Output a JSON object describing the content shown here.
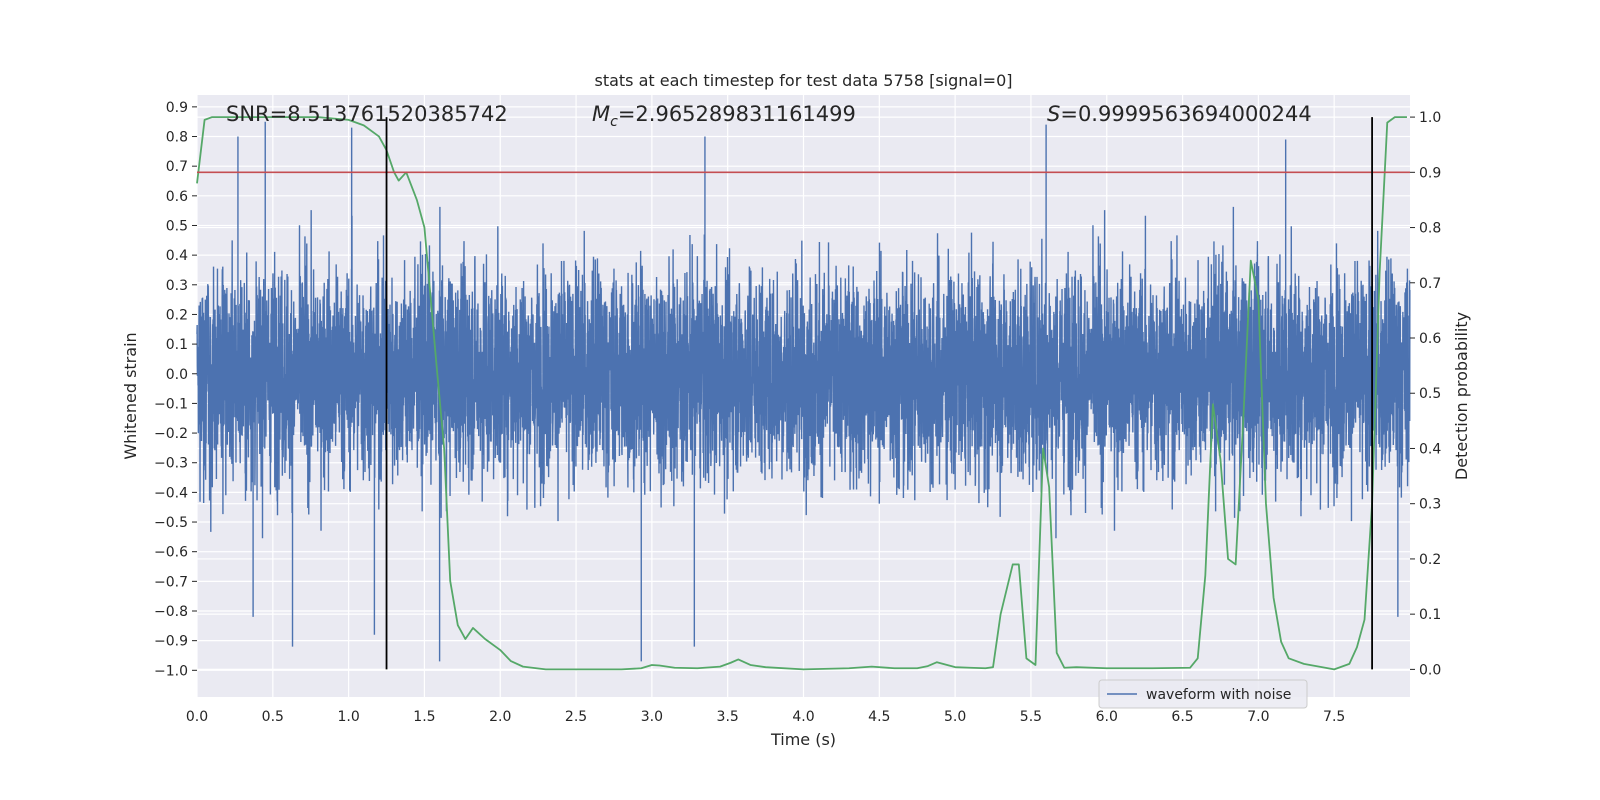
{
  "chart_data": {
    "type": "line",
    "title": "stats at each timestep for test data 5758 [signal=0]",
    "xlabel": "Time (s)",
    "ylabel": "Whitened strain",
    "y2label": "Detection probability",
    "xlim": [
      0.0,
      8.0
    ],
    "ylim": [
      -1.09,
      0.94
    ],
    "y2lim": [
      -0.05,
      1.04
    ],
    "xticks": [
      "0.0",
      "0.5",
      "1.0",
      "1.5",
      "2.0",
      "2.5",
      "3.0",
      "3.5",
      "4.0",
      "4.5",
      "5.0",
      "5.5",
      "6.0",
      "6.5",
      "7.0",
      "7.5"
    ],
    "yticks": [
      "0.9",
      "0.8",
      "0.7",
      "0.6",
      "0.5",
      "0.4",
      "0.3",
      "0.2",
      "0.1",
      "0.0",
      "−0.1",
      "−0.2",
      "−0.3",
      "−0.4",
      "−0.5",
      "−0.6",
      "−0.7",
      "−0.8",
      "−0.9",
      "−1.0"
    ],
    "y2ticks": [
      "1.0",
      "0.9",
      "0.8",
      "0.7",
      "0.6",
      "0.5",
      "0.4",
      "0.3",
      "0.2",
      "0.1",
      "0.0"
    ],
    "annotations": {
      "snr": "SNR=8.513761520385742",
      "mc_symbol": "M",
      "mc_sub": "c",
      "mc_value": "=2.965289831161499",
      "s_symbol": "S",
      "s_value": "=0.9999563694000244"
    },
    "threshold": 0.9,
    "vlines": [
      1.25,
      7.75
    ],
    "series": [
      {
        "name": "waveform with noise",
        "axis": "left",
        "color": "#4c72b0",
        "duration": 8.0,
        "noise_envelope": [
          -0.41,
          0.45
        ],
        "peak_values": [
          0.8,
          0.85,
          0.83,
          0.8,
          0.84,
          0.79,
          -0.82,
          -0.82,
          -0.92,
          -0.88,
          -0.97,
          -0.97,
          -0.92
        ]
      },
      {
        "name": "detection probability",
        "axis": "right",
        "color": "#55a868",
        "x": [
          0.0,
          0.05,
          0.1,
          0.2,
          0.3,
          0.5,
          0.8,
          1.0,
          1.1,
          1.2,
          1.25,
          1.3,
          1.33,
          1.38,
          1.45,
          1.5,
          1.58,
          1.63,
          1.67,
          1.72,
          1.77,
          1.82,
          1.9,
          2.0,
          2.07,
          2.15,
          2.3,
          2.5,
          2.8,
          2.93,
          3.0,
          3.05,
          3.15,
          3.3,
          3.45,
          3.52,
          3.57,
          3.65,
          3.75,
          4.0,
          4.3,
          4.45,
          4.6,
          4.75,
          4.82,
          4.88,
          5.0,
          5.1,
          5.2,
          5.25,
          5.3,
          5.38,
          5.42,
          5.47,
          5.53,
          5.58,
          5.62,
          5.67,
          5.72,
          5.8,
          6.0,
          6.3,
          6.55,
          6.6,
          6.65,
          6.7,
          6.75,
          6.8,
          6.85,
          6.9,
          6.95,
          7.0,
          7.05,
          7.1,
          7.15,
          7.2,
          7.3,
          7.5,
          7.6,
          7.65,
          7.7,
          7.75,
          7.8,
          7.85,
          7.9,
          7.98
        ],
        "values": [
          0.88,
          0.995,
          1.0,
          1.0,
          1.0,
          1.0,
          1.0,
          0.995,
          0.985,
          0.965,
          0.94,
          0.9,
          0.885,
          0.9,
          0.85,
          0.8,
          0.55,
          0.4,
          0.16,
          0.08,
          0.055,
          0.075,
          0.055,
          0.035,
          0.015,
          0.005,
          0.0,
          0.0,
          0.0,
          0.002,
          0.008,
          0.007,
          0.003,
          0.002,
          0.005,
          0.012,
          0.018,
          0.008,
          0.004,
          0.0,
          0.002,
          0.005,
          0.002,
          0.002,
          0.006,
          0.013,
          0.004,
          0.003,
          0.002,
          0.004,
          0.1,
          0.19,
          0.19,
          0.02,
          0.008,
          0.4,
          0.33,
          0.03,
          0.003,
          0.004,
          0.002,
          0.002,
          0.003,
          0.02,
          0.17,
          0.48,
          0.38,
          0.2,
          0.19,
          0.45,
          0.74,
          0.67,
          0.3,
          0.13,
          0.05,
          0.02,
          0.01,
          0.0,
          0.01,
          0.04,
          0.09,
          0.3,
          0.72,
          0.99,
          1.0,
          1.0
        ]
      }
    ],
    "legend": {
      "label": "waveform with noise",
      "placement": "lower-right"
    }
  }
}
